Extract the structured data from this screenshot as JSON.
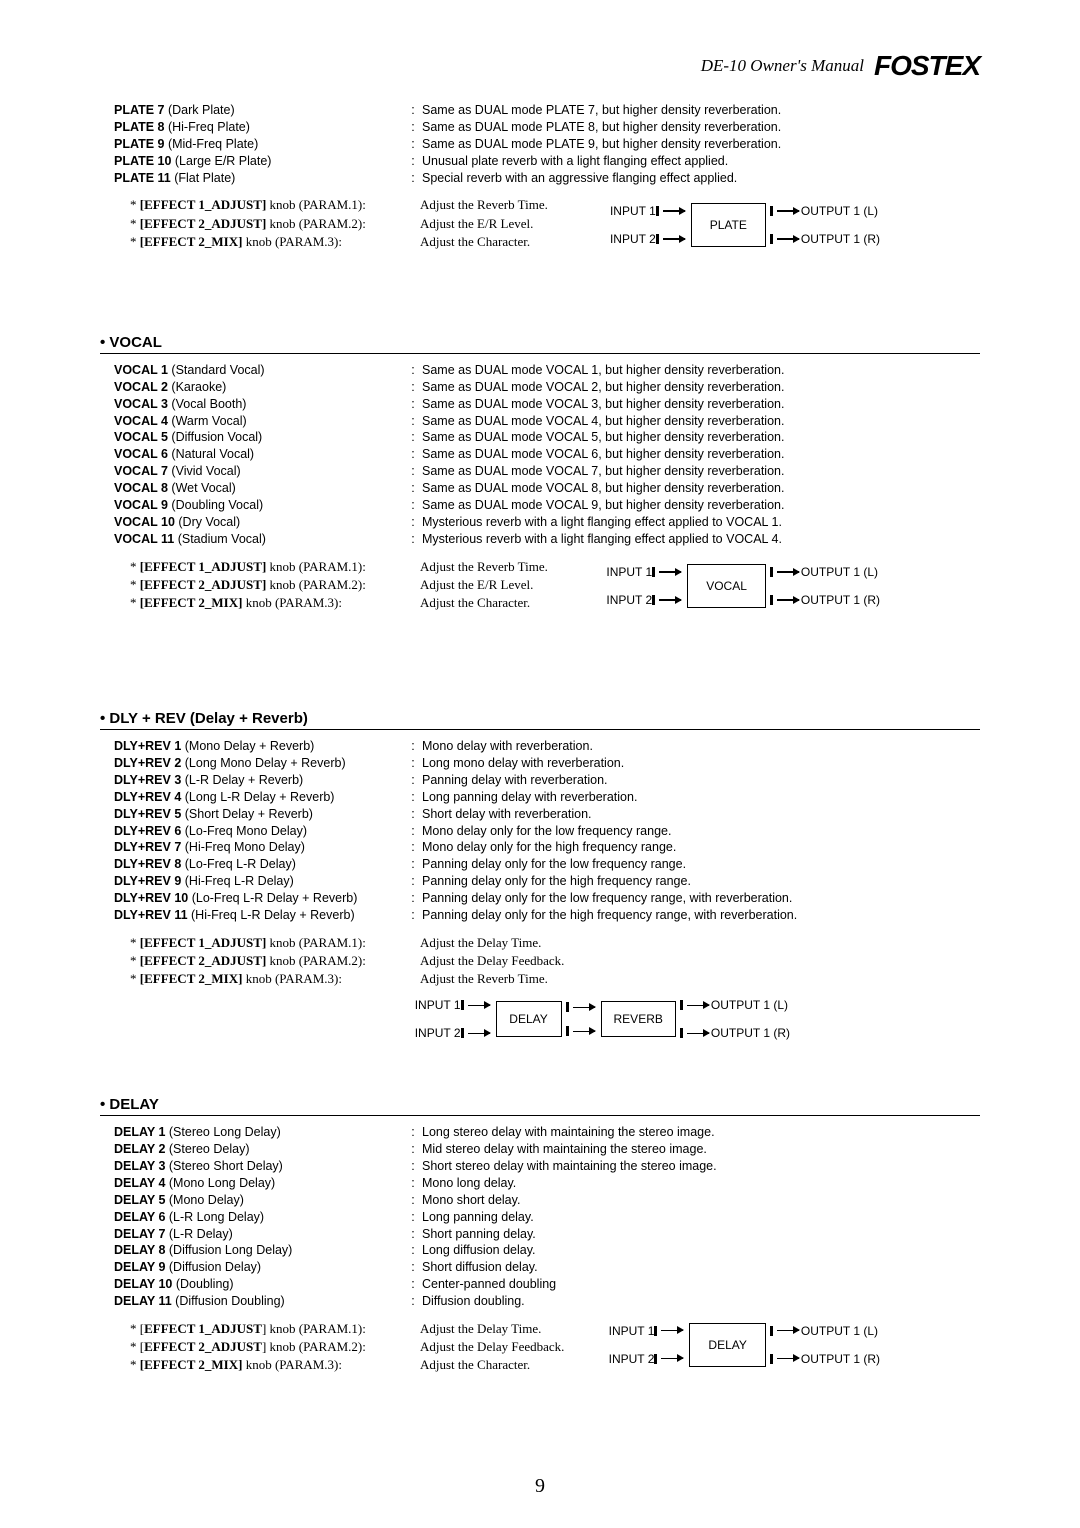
{
  "header": {
    "title": "DE-10  Owner's Manual",
    "logo": "FOSTEX"
  },
  "preamble_presets": [
    {
      "key": "PLATE 7",
      "paren": "(Dark Plate)",
      "desc": "Same as DUAL mode PLATE 7, but higher density reverberation."
    },
    {
      "key": "PLATE 8",
      "paren": "(Hi-Freq Plate)",
      "desc": "Same as DUAL mode PLATE 8, but higher density reverberation."
    },
    {
      "key": "PLATE 9",
      "paren": "(Mid-Freq Plate)",
      "desc": "Same as DUAL mode PLATE 9, but higher density reverberation."
    },
    {
      "key": "PLATE 10",
      "paren": "(Large E/R Plate)",
      "desc": "Unusual plate reverb with a light flanging effect applied."
    },
    {
      "key": "PLATE 11",
      "paren": "(Flat Plate)",
      "desc": "Special reverb with an aggressive flanging effect applied."
    }
  ],
  "preamble_params": [
    {
      "k": "[EFFECT 1_ADJUST]",
      "pre": "* ",
      "suf": " knob (PARAM.1):",
      "d": "Adjust the Reverb Time."
    },
    {
      "k": "[EFFECT 2_ADJUST]",
      "pre": "* ",
      "suf": " knob (PARAM.2):",
      "d": "Adjust the E/R Level."
    },
    {
      "k": "[EFFECT 2_MIX]",
      "pre": "* ",
      "suf": " knob (PARAM.3):",
      "d": "Adjust the Character."
    }
  ],
  "preamble_flow": {
    "box": "PLATE",
    "in1": "INPUT 1",
    "in2": "INPUT 2",
    "out1": "OUTPUT 1 (L)",
    "out2": "OUTPUT 1 (R)"
  },
  "vocal_heading": "• VOCAL",
  "vocal_presets": [
    {
      "key": "VOCAL 1",
      "paren": "(Standard Vocal)",
      "desc": "Same as DUAL mode VOCAL 1, but higher density reverberation."
    },
    {
      "key": "VOCAL 2",
      "paren": "(Karaoke)",
      "desc": "Same as DUAL mode VOCAL 2, but higher density reverberation."
    },
    {
      "key": "VOCAL 3",
      "paren": "(Vocal Booth)",
      "desc": "Same as DUAL mode VOCAL 3, but higher density reverberation."
    },
    {
      "key": "VOCAL 4",
      "paren": "(Warm Vocal)",
      "desc": "Same as DUAL mode VOCAL 4, but higher density reverberation."
    },
    {
      "key": "VOCAL 5",
      "paren": "(Diffusion Vocal)",
      "desc": "Same as DUAL mode VOCAL 5, but higher density reverberation."
    },
    {
      "key": "VOCAL 6",
      "paren": "(Natural Vocal)",
      "desc": "Same as DUAL mode VOCAL 6, but higher density reverberation."
    },
    {
      "key": "VOCAL 7",
      "paren": "(Vivid Vocal)",
      "desc": "Same as DUAL mode VOCAL 7, but higher density reverberation."
    },
    {
      "key": "VOCAL 8",
      "paren": "(Wet Vocal)",
      "desc": "Same as DUAL mode VOCAL 8, but higher density reverberation."
    },
    {
      "key": "VOCAL 9",
      "paren": "(Doubling Vocal)",
      "desc": "Same as DUAL mode VOCAL 9, but higher density reverberation."
    },
    {
      "key": "VOCAL 10",
      "paren": "(Dry Vocal)",
      "desc": "Mysterious reverb with a light flanging effect applied to VOCAL 1."
    },
    {
      "key": "VOCAL 11",
      "paren": "(Stadium Vocal)",
      "desc": "Mysterious reverb with a light flanging effect applied to VOCAL 4."
    }
  ],
  "vocal_params": [
    {
      "k": "[EFFECT 1_ADJUST]",
      "pre": "* ",
      "suf": " knob (PARAM.1):",
      "d": "Adjust the Reverb Time."
    },
    {
      "k": "[EFFECT 2_ADJUST]",
      "pre": "* ",
      "suf": " knob (PARAM.2):",
      "d": "Adjust the E/R Level."
    },
    {
      "k": "[EFFECT 2_MIX]",
      "pre": "* ",
      "suf": " knob (PARAM.3):",
      "d": "Adjust the Character."
    }
  ],
  "vocal_flow": {
    "box": "VOCAL",
    "in1": "INPUT 1",
    "in2": "INPUT 2",
    "out1": "OUTPUT 1 (L)",
    "out2": "OUTPUT 1 (R)"
  },
  "dlyrev_heading": "• DLY + REV (Delay + Reverb)",
  "dlyrev_presets": [
    {
      "key": "DLY+REV 1",
      "paren": "(Mono Delay + Reverb)",
      "desc": "Mono delay with reverberation."
    },
    {
      "key": "DLY+REV 2",
      "paren": "(Long Mono Delay + Reverb)",
      "desc": "Long mono delay with reverberation."
    },
    {
      "key": "DLY+REV 3",
      "paren": "(L-R Delay + Reverb)",
      "desc": "Panning delay with reverberation."
    },
    {
      "key": "DLY+REV 4",
      "paren": "(Long L-R Delay + Reverb)",
      "desc": "Long panning delay with reverberation."
    },
    {
      "key": "DLY+REV 5",
      "paren": "(Short Delay + Reverb)",
      "desc": "Short delay with reverberation."
    },
    {
      "key": "DLY+REV 6",
      "paren": "(Lo-Freq Mono Delay)",
      "desc": "Mono delay only for the low frequency range."
    },
    {
      "key": "DLY+REV 7",
      "paren": "(Hi-Freq Mono Delay)",
      "desc": "Mono delay only for the high frequency range."
    },
    {
      "key": "DLY+REV 8",
      "paren": "(Lo-Freq L-R Delay)",
      "desc": "Panning delay only for the low frequency range."
    },
    {
      "key": "DLY+REV 9",
      "paren": "(Hi-Freq L-R Delay)",
      "desc": "Panning delay only for the high frequency range."
    },
    {
      "key": "DLY+REV 10",
      "paren": "(Lo-Freq L-R Delay + Reverb)",
      "desc": "Panning delay only for the low frequency range, with reverberation."
    },
    {
      "key": "DLY+REV 11",
      "paren": "(Hi-Freq L-R Delay + Reverb)",
      "desc": "Panning delay only for the high frequency range, with reverberation."
    }
  ],
  "dlyrev_params": [
    {
      "k": "[EFFECT 1_ADJUST]",
      "pre": "* ",
      "suf": " knob (PARAM.1):",
      "d": "Adjust the Delay Time."
    },
    {
      "k": "[EFFECT 2_ADJUST]",
      "pre": "* ",
      "suf": " knob (PARAM.2):",
      "d": "Adjust the Delay Feedback."
    },
    {
      "k": "[EFFECT 2_MIX]",
      "pre": "* ",
      "suf": " knob (PARAM.3):",
      "d": "Adjust the Reverb Time."
    }
  ],
  "dlyrev_flow": {
    "box1": "DELAY",
    "box2": "REVERB",
    "in1": "INPUT 1",
    "in2": "INPUT 2",
    "out1": "OUTPUT 1 (L)",
    "out2": "OUTPUT 1 (R)"
  },
  "delay_heading": "• DELAY",
  "delay_presets": [
    {
      "key": "DELAY 1",
      "paren": "(Stereo Long Delay)",
      "desc": "Long stereo delay with maintaining the stereo image."
    },
    {
      "key": "DELAY 2",
      "paren": "(Stereo Delay)",
      "desc": "Mid stereo delay with maintaining the stereo image."
    },
    {
      "key": "DELAY 3",
      "paren": "(Stereo Short Delay)",
      "desc": "Short stereo delay with maintaining the stereo image."
    },
    {
      "key": "DELAY 4",
      "paren": "(Mono Long Delay)",
      "desc": "Mono long delay."
    },
    {
      "key": "DELAY 5",
      "paren": "(Mono Delay)",
      "desc": "Mono short delay."
    },
    {
      "key": "DELAY 6",
      "paren": "(L-R Long Delay)",
      "desc": "Long panning delay."
    },
    {
      "key": "DELAY 7",
      "paren": "(L-R Delay)",
      "desc": "Short panning delay."
    },
    {
      "key": "DELAY 8",
      "paren": "(Diffusion Long Delay)",
      "desc": "Long diffusion delay."
    },
    {
      "key": "DELAY 9",
      "paren": "(Diffusion Delay)",
      "desc": "Short diffusion delay."
    },
    {
      "key": "DELAY 10",
      "paren": "(Doubling)",
      "desc": "Center-panned doubling"
    },
    {
      "key": "DELAY 11",
      "paren": "(Diffusion Doubling)",
      "desc": "Diffusion doubling."
    }
  ],
  "delay_params": [
    {
      "k": "[EFFECT 1_ADJUST]",
      "pre": "* ",
      "bracket_plain": true,
      "suf": " knob (PARAM.1):",
      "d": "Adjust the Delay Time."
    },
    {
      "k": "[EFFECT 2_ADJUST]",
      "pre": "* ",
      "bracket_plain": true,
      "suf": " knob (PARAM.2):",
      "d": "Adjust the Delay Feedback."
    },
    {
      "k": "[EFFECT 2_MIX]",
      "pre": "* ",
      "suf": " knob (PARAM.3):",
      "d": "Adjust the Character."
    }
  ],
  "delay_flow": {
    "box": "DELAY",
    "in1": "INPUT 1",
    "in2": "INPUT 2",
    "out1": "OUTPUT 1 (L)",
    "out2": "OUTPUT 1 (R)"
  },
  "page_number": "9"
}
